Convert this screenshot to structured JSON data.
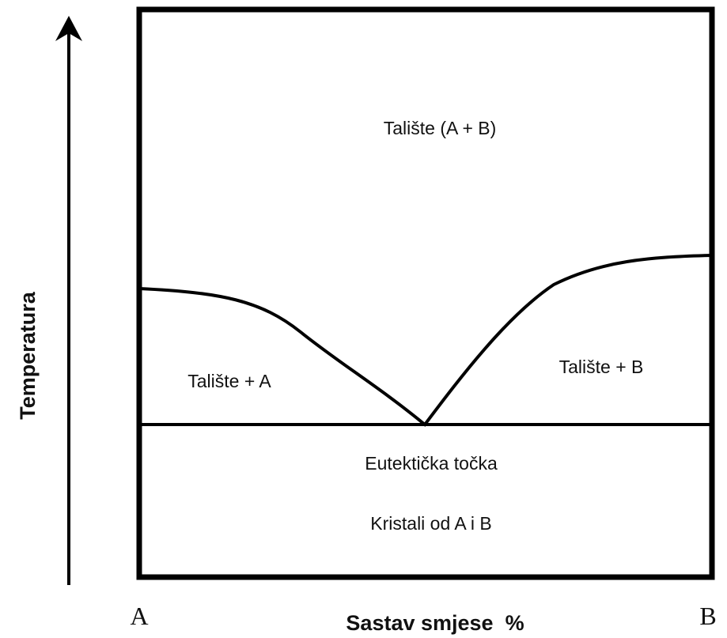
{
  "y_axis_label": "Temperatura",
  "x_axis_label": "Sastav smjese  %",
  "x_start": "A",
  "x_end": "B",
  "regions": {
    "liquid": "Talište (A + B)",
    "liquid_a": "Talište + A",
    "liquid_b": "Talište + B",
    "eutectic": "Eutektička točka",
    "solid": "Kristali od A i B"
  }
}
